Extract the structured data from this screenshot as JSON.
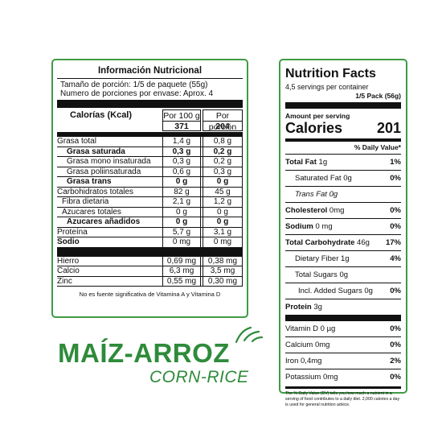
{
  "es": {
    "title": "Información Nutricional",
    "serving_size": "Tamaño de porción: 1/5 de paquete (55g)",
    "servings": "Numero de porciones por envase: Aprox. 4",
    "col1": "Por 100 g",
    "col2": "Por porción",
    "kcal_label": "Calorías (Kcal)",
    "kcal_100": "371",
    "kcal_portion": "204",
    "rows": [
      {
        "label": "Grasa total",
        "v1": "1,4 g",
        "v2": "0,8 g"
      },
      {
        "label": "Grasa saturada",
        "v1": "0,3 g",
        "v2": "0,2 g"
      },
      {
        "label": "Grasa mono insaturada",
        "v1": "0,3 g",
        "v2": "0,2 g"
      },
      {
        "label": "Grasa poliinsaturada",
        "v1": "0,6 g",
        "v2": "0,3 g"
      },
      {
        "label": "Grasa trans",
        "v1": "0 g",
        "v2": "0 g"
      },
      {
        "label": "Carbohidratos totales",
        "v1": "82 g",
        "v2": "45 g"
      },
      {
        "label": "Fibra dietaria",
        "v1": "2,1 g",
        "v2": "1,2 g"
      },
      {
        "label": "Azucares totales",
        "v1": "0 g",
        "v2": "0 g"
      },
      {
        "label": "Azucares añadidos",
        "v1": "0 g",
        "v2": "0 g"
      },
      {
        "label": "Proteína",
        "v1": "5,7 g",
        "v2": "3,1 g"
      },
      {
        "label": "Sodio",
        "v1": "0 mg",
        "v2": "0 mg"
      }
    ],
    "minerals": [
      {
        "label": "Hierro",
        "v1": "0,69 mg",
        "v2": "0,38 mg"
      },
      {
        "label": "Calcio",
        "v1": "6,3 mg",
        "v2": "3,5 mg"
      },
      {
        "label": "Zinc",
        "v1": "0,55 mg",
        "v2": "0,30 mg"
      }
    ],
    "note": "No es fuente significativa de Vitamina A y Vitamina D"
  },
  "en": {
    "title": "Nutrition Facts",
    "servings": "4,5 servings  per container",
    "serving_size": "1/5 Pack (56g)",
    "amount_label": "Amount per serving",
    "calories_label": "Calories",
    "calories_value": "201",
    "dv_header": "% Daily Value*",
    "rows": [
      {
        "name": "Total Fat",
        "amount": "1g",
        "dv": "1%"
      },
      {
        "name": "Saturated Fat",
        "amount": "0g",
        "dv": "0%"
      },
      {
        "name": "Trans Fat",
        "amount": "0g",
        "dv": ""
      },
      {
        "name": "Cholesterol",
        "amount": "0mg",
        "dv": "0%"
      },
      {
        "name": "Sodium",
        "amount": "0 mg",
        "dv": "0%"
      },
      {
        "name": "Total Carbohydrate",
        "amount": "46g",
        "dv": "17%"
      },
      {
        "name": "Dietary Fiber",
        "amount": "1g",
        "dv": "4%"
      },
      {
        "name": "Total Sugars",
        "amount": "0g",
        "dv": ""
      },
      {
        "name": "Incl. Added Sugars",
        "amount": "0g",
        "dv": "0%"
      },
      {
        "name": "Protein",
        "amount": "3g",
        "dv": ""
      }
    ],
    "vitamins": [
      {
        "name": "Vitamin D",
        "amount": "0 µg",
        "dv": "0%"
      },
      {
        "name": "Calcium",
        "amount": "0mg",
        "dv": "0%"
      },
      {
        "name": "Iron",
        "amount": "0,4mg",
        "dv": "2%"
      },
      {
        "name": "Potassium",
        "amount": "0mg",
        "dv": "0%"
      }
    ],
    "footnote": "The % Daily Value (DV) tells you how much a nutrient in a serving of food contributes to a daily diet. 2,000 calories a day is used for general nutrition advice."
  },
  "brand": {
    "name": "MAÍZ-ARROZ",
    "subtitle": "CORN-RICE",
    "color": "#2e8b3a"
  }
}
